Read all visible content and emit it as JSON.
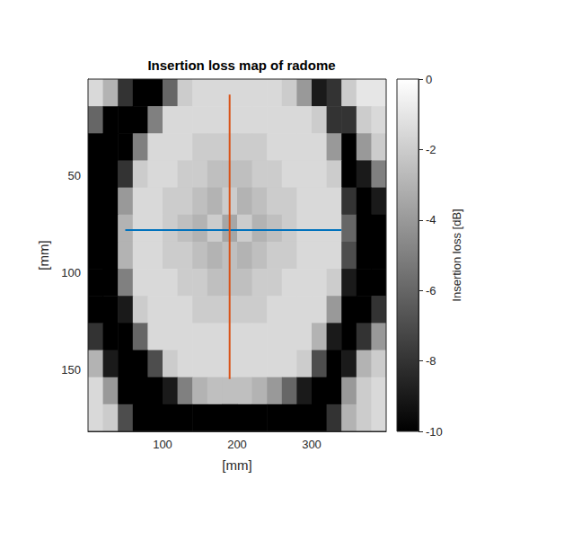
{
  "chart_data": {
    "type": "heatmap",
    "title": "Insertion loss map of radome",
    "xlabel": "[mm]",
    "ylabel": "[mm]",
    "xlim": [
      0,
      400
    ],
    "ylim": [
      0,
      182
    ],
    "xticks": [
      100,
      200,
      300
    ],
    "yticks": [
      50,
      100,
      150
    ],
    "cells": {
      "x": [
        10,
        30,
        50,
        70,
        90,
        110,
        130,
        150,
        170,
        190,
        210,
        230,
        250,
        270,
        290,
        310,
        330,
        350,
        370,
        390
      ],
      "y": [
        7,
        21,
        35,
        49,
        63,
        77,
        91,
        105,
        119,
        133,
        147,
        161,
        175
      ],
      "values": [
        [
          -1.5,
          -3,
          -8,
          -10,
          -10,
          -6,
          -2,
          -1.5,
          -1.5,
          -1.5,
          -1.5,
          -1.5,
          -1.5,
          -2,
          -4,
          -9,
          -8,
          -2,
          -1,
          -1
        ],
        [
          -6,
          -10,
          -10,
          -10,
          -5,
          -1.5,
          -1.5,
          -1.5,
          -1.5,
          -1.5,
          -1.5,
          -1.5,
          -1.5,
          -1.5,
          -1.5,
          -2,
          -8,
          -8,
          -2,
          -1.5
        ],
        [
          -10,
          -10,
          -10,
          -5,
          -1.5,
          -1.5,
          -1.5,
          -2,
          -2,
          -2,
          -2,
          -2,
          -1.5,
          -1.5,
          -1.5,
          -1.5,
          -4,
          -10,
          -4,
          -2
        ],
        [
          -10,
          -10,
          -8,
          -2,
          -1.5,
          -1.5,
          -2,
          -2,
          -2.5,
          -2.5,
          -2.5,
          -2,
          -2,
          -1.5,
          -1.5,
          -1.5,
          -2,
          -10,
          -9,
          -5
        ],
        [
          -10,
          -10,
          -4,
          -1.5,
          -1.5,
          -2,
          -2,
          -2.5,
          -3,
          -2,
          -3,
          -2.5,
          -2,
          -2,
          -1.5,
          -1.5,
          -1.5,
          -8,
          -10,
          -9
        ],
        [
          -10,
          -10,
          -3,
          -1.5,
          -1.5,
          -2,
          -2.5,
          -3,
          -2,
          -3.5,
          -2,
          -3,
          -2.5,
          -2,
          -1.5,
          -1.5,
          -1.5,
          -6,
          -10,
          -10
        ],
        [
          -10,
          -10,
          -3,
          -1.5,
          -1.5,
          -2,
          -2,
          -2.5,
          -3,
          -2.5,
          -3,
          -2.5,
          -2,
          -2,
          -1.5,
          -1.5,
          -1.5,
          -7,
          -10,
          -10
        ],
        [
          -10,
          -10,
          -5,
          -1.5,
          -1.5,
          -1.5,
          -2,
          -2,
          -2.5,
          -2.5,
          -2.5,
          -2,
          -2,
          -1.5,
          -1.5,
          -1.5,
          -2,
          -9,
          -10,
          -10
        ],
        [
          -10,
          -10,
          -9,
          -2,
          -1.5,
          -1.5,
          -1.5,
          -2,
          -2,
          -2,
          -2,
          -2,
          -1.5,
          -1.5,
          -1.5,
          -1.5,
          -4,
          -10,
          -10,
          -8
        ],
        [
          -8,
          -10,
          -10,
          -6,
          -1.5,
          -1.5,
          -1.5,
          -1.5,
          -1.5,
          -1.5,
          -1.5,
          -1.5,
          -1.5,
          -1.5,
          -1.5,
          -3,
          -9,
          -10,
          -8,
          -4
        ],
        [
          -3,
          -9,
          -10,
          -10,
          -7,
          -2,
          -1.5,
          -1.5,
          -1.5,
          -1.5,
          -1.5,
          -1.5,
          -1.5,
          -1.5,
          -2,
          -7,
          -10,
          -9,
          -3,
          -2
        ],
        [
          -1.5,
          -4,
          -10,
          -10,
          -10,
          -9,
          -5,
          -3,
          -2.5,
          -2.5,
          -2.5,
          -3,
          -4,
          -6,
          -9,
          -10,
          -10,
          -4,
          -2,
          -1.5
        ],
        [
          -1.5,
          -2,
          -7,
          -10,
          -10,
          -10,
          -10,
          -10,
          -10,
          -10,
          -10,
          -10,
          -10,
          -10,
          -10,
          -10,
          -8,
          -3,
          -2,
          -1.5
        ]
      ]
    },
    "colorbar": {
      "label": "Insertion loss [dB]",
      "range": [
        -10,
        0
      ],
      "ticks": [
        -10,
        -8,
        -6,
        -4,
        -2,
        0
      ]
    },
    "series": [
      {
        "type": "line",
        "color": "#0072bd",
        "x": [
          50,
          340
        ],
        "y": [
          78,
          78
        ]
      },
      {
        "type": "line",
        "color": "#d95319",
        "x": [
          190,
          190
        ],
        "y": [
          8,
          155
        ]
      }
    ]
  }
}
